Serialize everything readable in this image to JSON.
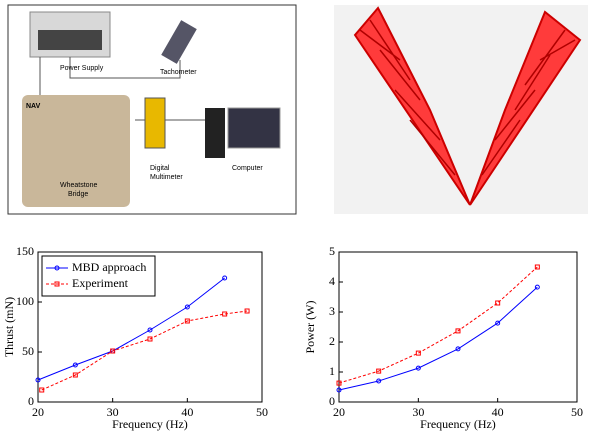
{
  "diagram": {
    "labels": [
      "Power Supply",
      "Tachometer",
      "NAV",
      "Digital",
      "Multimeter",
      "Computer",
      "Wheatstone",
      "Bridge"
    ]
  },
  "chart_data": [
    {
      "type": "line",
      "ylabel": "Thrust (mN)",
      "xlabel": "Frequency (Hz)",
      "xlim": [
        20,
        50
      ],
      "xticks": [
        20,
        30,
        40,
        50
      ],
      "ylim": [
        0,
        150
      ],
      "yticks": [
        0,
        50,
        100,
        150
      ],
      "legend": "upper left",
      "series": [
        {
          "name": "MBD approach",
          "color": "#0000ff",
          "dash": false,
          "marker": "circle",
          "x": [
            20,
            25,
            30,
            35,
            40,
            45
          ],
          "values": [
            22,
            37,
            51,
            72,
            95,
            124
          ]
        },
        {
          "name": "Experiment",
          "color": "#ff0000",
          "dash": true,
          "marker": "square",
          "x": [
            20.5,
            25,
            30,
            35,
            40,
            45,
            48
          ],
          "values": [
            12,
            27,
            51,
            63,
            81,
            88,
            91
          ]
        }
      ]
    },
    {
      "type": "line",
      "ylabel": "Power (W)",
      "xlabel": "Frequency (Hz)",
      "xlim": [
        20,
        50
      ],
      "xticks": [
        20,
        30,
        40,
        50
      ],
      "ylim": [
        0,
        5
      ],
      "yticks": [
        0,
        1,
        2,
        3,
        4,
        5
      ],
      "series": [
        {
          "color": "#0000ff",
          "dash": false,
          "marker": "circle",
          "x": [
            20,
            25,
            30,
            35,
            40,
            45
          ],
          "values": [
            0.4,
            0.7,
            1.13,
            1.77,
            2.63,
            3.83
          ]
        },
        {
          "color": "#ff0000",
          "dash": true,
          "marker": "square",
          "x": [
            20,
            25,
            30,
            35,
            40,
            45
          ],
          "values": [
            0.63,
            1.03,
            1.63,
            2.37,
            3.3,
            4.5
          ]
        }
      ]
    }
  ]
}
